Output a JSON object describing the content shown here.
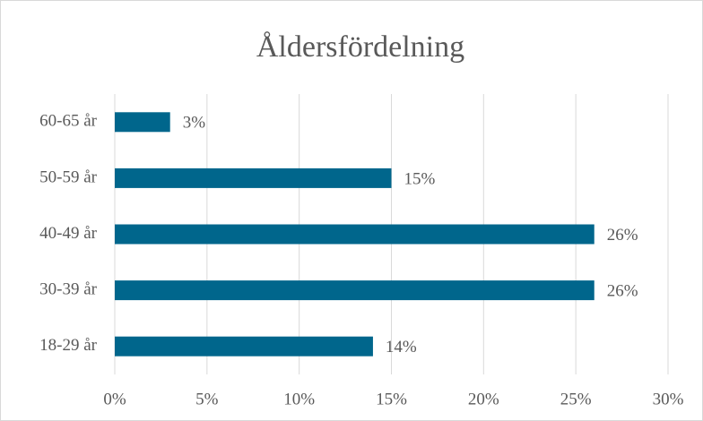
{
  "chart_data": {
    "type": "bar",
    "orientation": "horizontal",
    "title": "Åldersfördelning",
    "categories": [
      "18-29 år",
      "30-39 år",
      "40-49 år",
      "50-59 år",
      "60-65 år"
    ],
    "values": [
      14,
      26,
      26,
      15,
      3
    ],
    "value_labels": [
      "14%",
      "26%",
      "26%",
      "15%",
      "3%"
    ],
    "color": "#00668c",
    "xlim": [
      0,
      30
    ],
    "xticks": [
      {
        "value": 0,
        "label": "0%"
      },
      {
        "value": 5,
        "label": "5%"
      },
      {
        "value": 10,
        "label": "10%"
      },
      {
        "value": 15,
        "label": "15%"
      },
      {
        "value": 20,
        "label": "20%"
      },
      {
        "value": 25,
        "label": "25%"
      },
      {
        "value": 30,
        "label": "30%"
      }
    ],
    "grid": true
  }
}
